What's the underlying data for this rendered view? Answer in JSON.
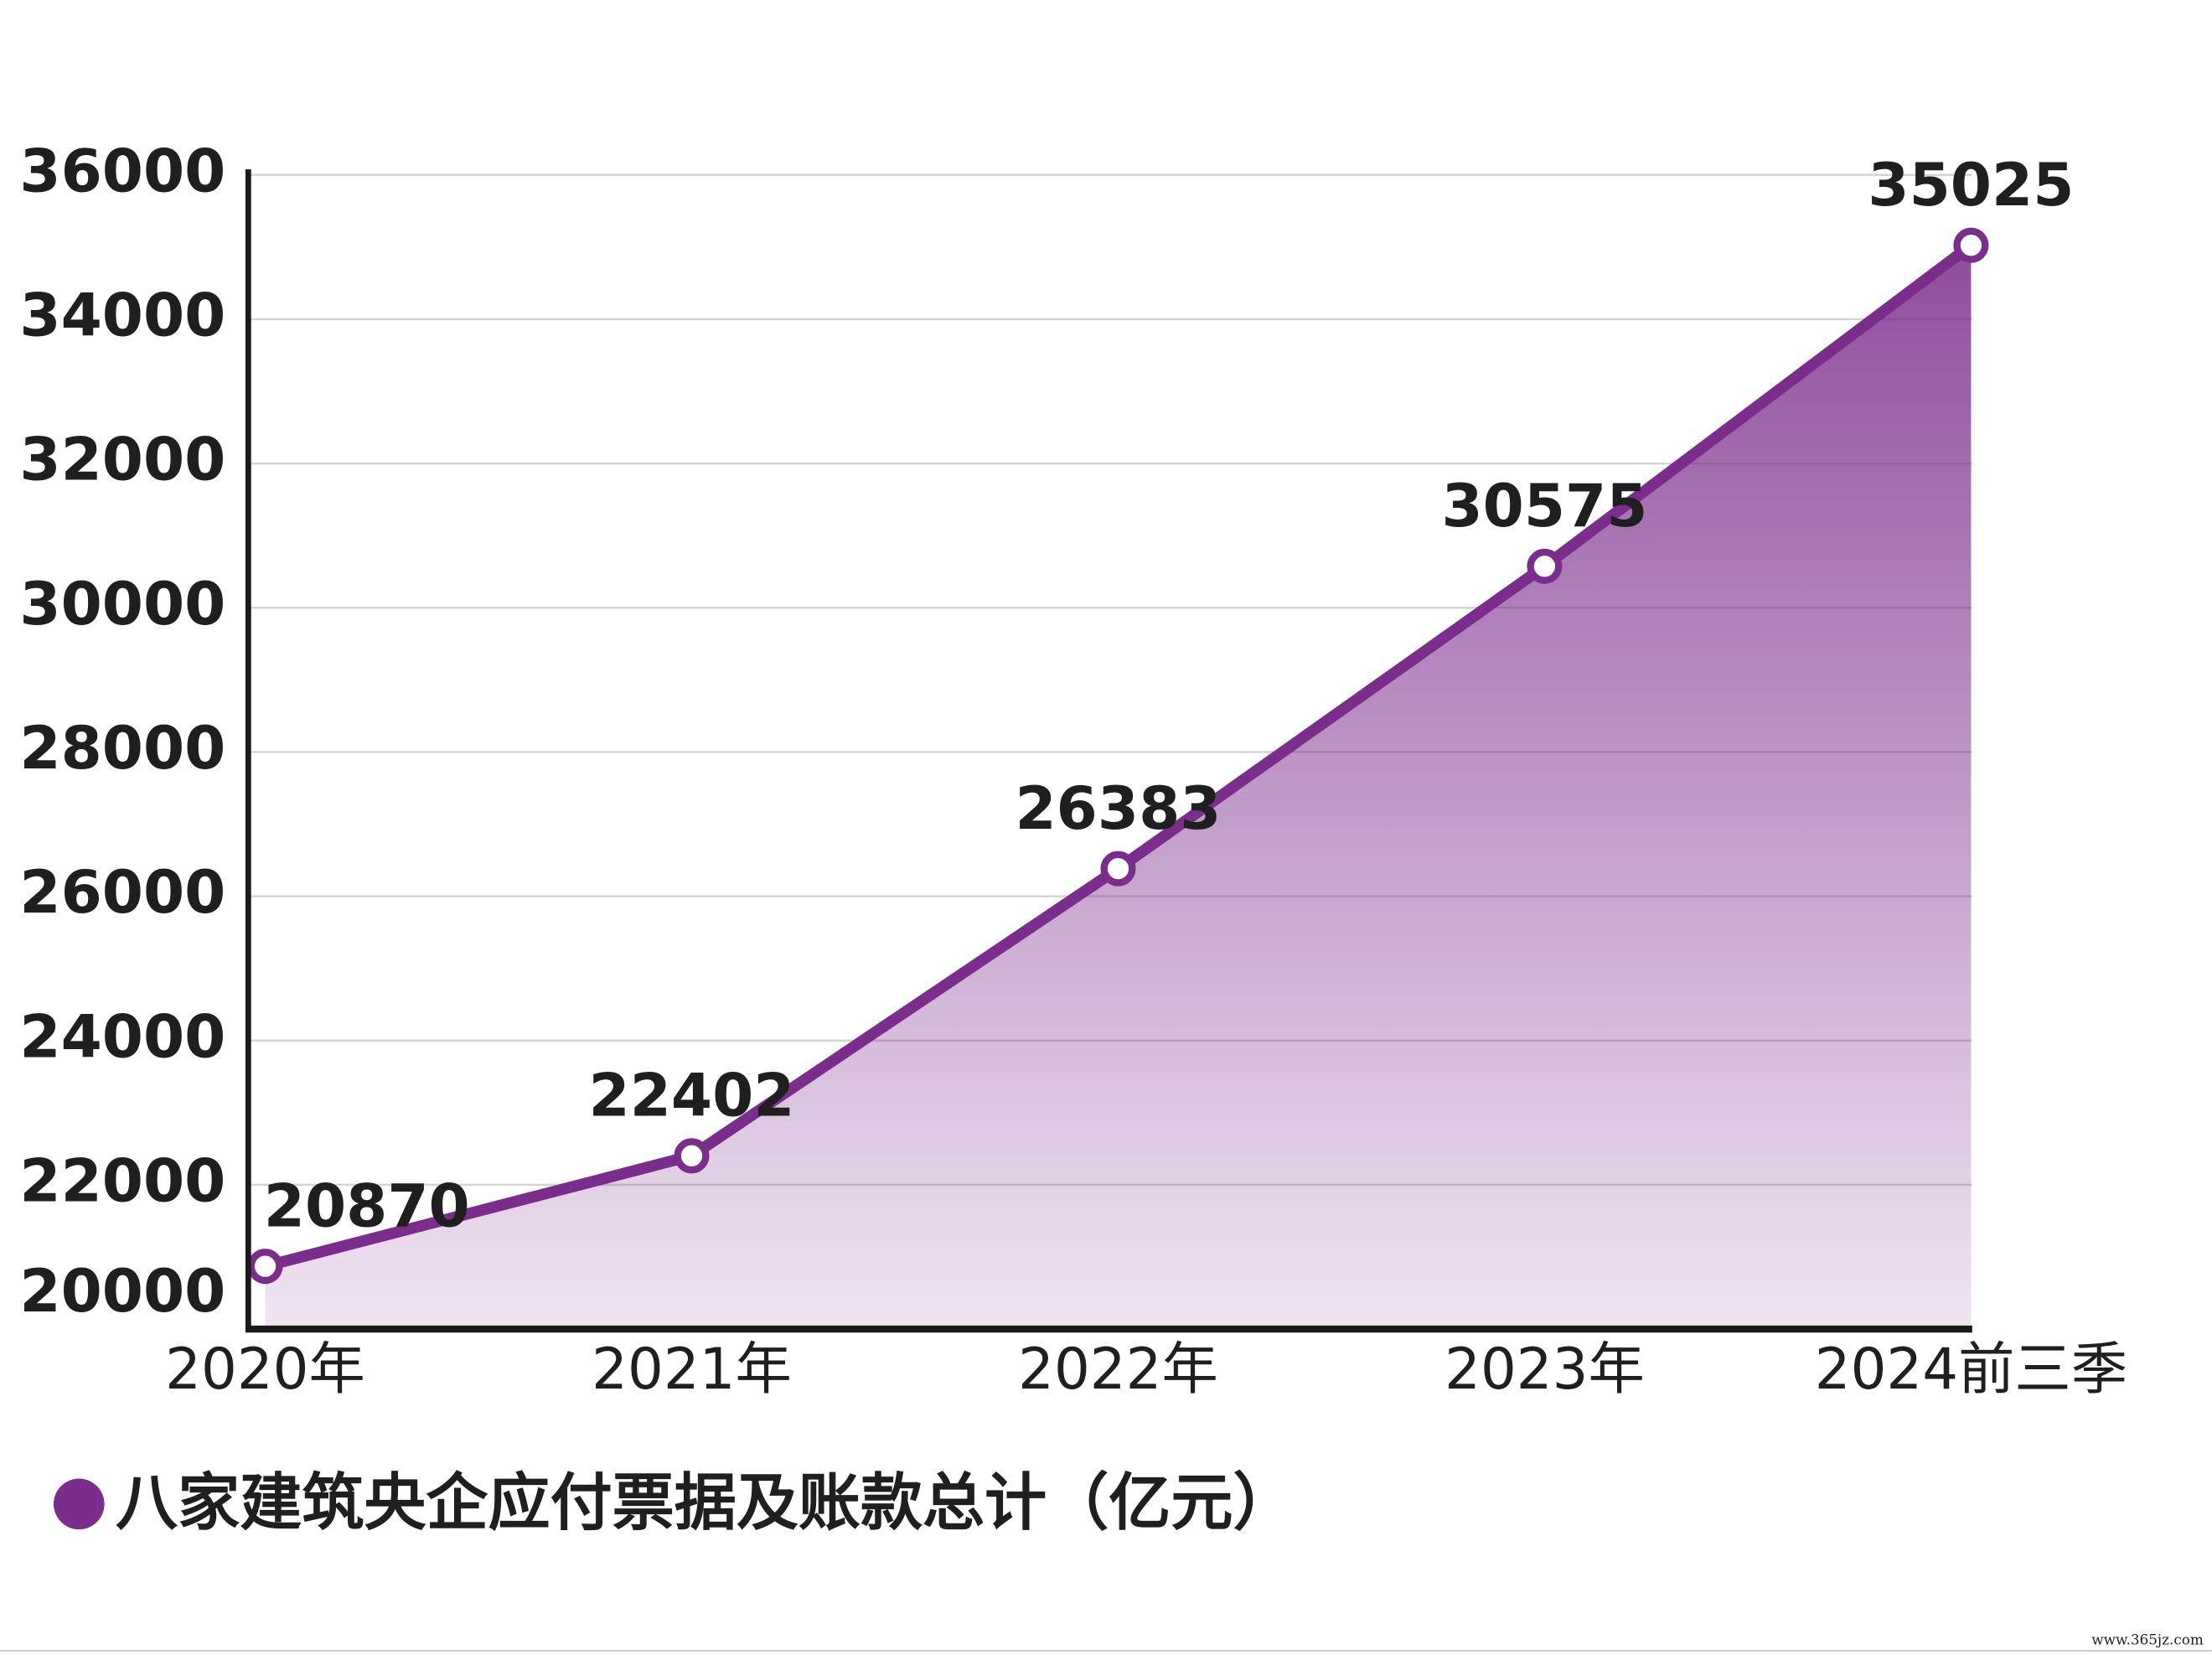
{
  "chart_data": {
    "type": "line",
    "categories": [
      "2020年",
      "2021年",
      "2022年",
      "2023年",
      "2024前三季"
    ],
    "series": [
      {
        "name": "八家建筑央企应付票据及账款总计（亿元）",
        "color": "#7b2d8b",
        "values": [
          20870,
          22402,
          26383,
          30575,
          35025
        ]
      }
    ],
    "ylim": [
      20000,
      36000
    ],
    "yticks": [
      20000,
      22000,
      24000,
      26000,
      28000,
      30000,
      32000,
      34000,
      36000
    ],
    "grid": true,
    "area": true,
    "legend": "bottom-left",
    "watermark": "www.365jz.com"
  }
}
